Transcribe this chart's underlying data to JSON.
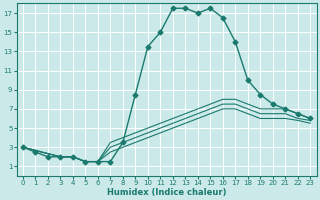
{
  "xlabel": "Humidex (Indice chaleur)",
  "bg_color": "#cce9e9",
  "grid_color": "#ffffff",
  "line_color": "#1a7a6e",
  "xlim": [
    -0.5,
    23.5
  ],
  "ylim": [
    0,
    18
  ],
  "xticks": [
    0,
    1,
    2,
    3,
    4,
    5,
    6,
    7,
    8,
    9,
    10,
    11,
    12,
    13,
    14,
    15,
    16,
    17,
    18,
    19,
    20,
    21,
    22,
    23
  ],
  "yticks": [
    1,
    3,
    5,
    7,
    9,
    11,
    13,
    15,
    17
  ],
  "series_main": {
    "x": [
      0,
      1,
      2,
      3,
      4,
      5,
      6,
      7,
      8,
      9,
      10,
      11,
      12,
      13,
      14,
      15,
      16,
      17,
      18,
      19,
      20,
      21,
      22,
      23
    ],
    "y": [
      3,
      2.5,
      2,
      2,
      2,
      1.5,
      1.5,
      1.5,
      3.5,
      8.5,
      13.5,
      15,
      17.5,
      17.5,
      17,
      17.5,
      16.5,
      14,
      10,
      8.5,
      7.5,
      7,
      6.5,
      6
    ],
    "marker": "D",
    "markersize": 2.5,
    "linewidth": 1.0
  },
  "series_flat": [
    {
      "x": [
        0,
        3,
        4,
        5,
        6,
        7,
        8,
        9,
        10,
        11,
        12,
        13,
        14,
        15,
        16,
        17,
        18,
        19,
        20,
        21,
        22,
        23
      ],
      "y": [
        3,
        2,
        2,
        1.5,
        1.5,
        3.5,
        4,
        4.5,
        5,
        5.5,
        6,
        6.5,
        7,
        7.5,
        8,
        8,
        7.5,
        7,
        7,
        7,
        6.5,
        6
      ]
    },
    {
      "x": [
        0,
        3,
        4,
        5,
        6,
        7,
        8,
        9,
        10,
        11,
        12,
        13,
        14,
        15,
        16,
        17,
        18,
        19,
        20,
        21,
        22,
        23
      ],
      "y": [
        3,
        2,
        2,
        1.5,
        1.5,
        3.0,
        3.5,
        4,
        4.5,
        5,
        5.5,
        6,
        6.5,
        7,
        7.5,
        7.5,
        7,
        6.5,
        6.5,
        6.5,
        6,
        5.8
      ]
    },
    {
      "x": [
        0,
        3,
        4,
        5,
        6,
        7,
        8,
        9,
        10,
        11,
        12,
        13,
        14,
        15,
        16,
        17,
        18,
        19,
        20,
        21,
        22,
        23
      ],
      "y": [
        3,
        2,
        2,
        1.5,
        1.5,
        2.5,
        3,
        3.5,
        4,
        4.5,
        5,
        5.5,
        6,
        6.5,
        7,
        7,
        6.5,
        6,
        6,
        6,
        5.8,
        5.5
      ]
    }
  ]
}
